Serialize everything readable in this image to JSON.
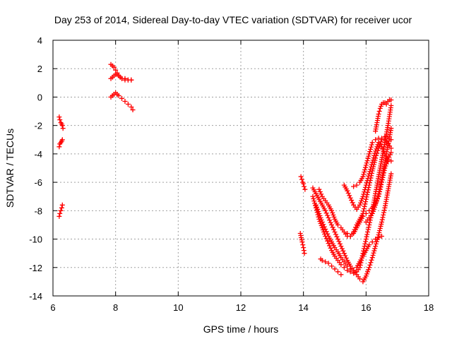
{
  "chart_data": {
    "type": "scatter",
    "title": "Day 253 of 2014, Sidereal Day-to-day VTEC variation (SDTVAR) for receiver ucor",
    "xlabel": "GPS time / hours",
    "ylabel": "SDTVAR / TECUs",
    "xlim": [
      6,
      18
    ],
    "ylim": [
      -14,
      4
    ],
    "x_ticks": [
      "6",
      "8",
      "10",
      "12",
      "14",
      "16",
      "18"
    ],
    "y_ticks": [
      "4",
      "2",
      "0",
      "-2",
      "-4",
      "-6",
      "-8",
      "-10",
      "-12",
      "-14"
    ],
    "grid": true,
    "legend": "none",
    "marker": "+",
    "color": "#ff0000",
    "series": [
      {
        "x": [
          6.2,
          6.22,
          6.25,
          6.28,
          6.3,
          6.32
        ],
        "values": [
          -1.4,
          -1.6,
          -1.8,
          -1.9,
          -2.0,
          -2.2
        ]
      },
      {
        "x": [
          6.2,
          6.22,
          6.25,
          6.28,
          6.3
        ],
        "values": [
          -3.5,
          -3.3,
          -3.2,
          -3.1,
          -3.0
        ]
      },
      {
        "x": [
          6.2,
          6.22,
          6.25,
          6.28,
          6.3
        ],
        "values": [
          -8.4,
          -8.2,
          -8.0,
          -7.8,
          -7.6
        ]
      },
      {
        "x": [
          7.85,
          7.9,
          7.95,
          8.0,
          8.05,
          8.1,
          8.15,
          8.2,
          8.3,
          8.4,
          8.5
        ],
        "values": [
          2.3,
          2.2,
          2.1,
          1.9,
          1.7,
          1.5,
          1.4,
          1.3,
          1.3,
          1.2,
          1.2
        ]
      },
      {
        "x": [
          7.85,
          7.9,
          7.95,
          8.0,
          8.05,
          8.1,
          8.15,
          8.2,
          8.3,
          8.4,
          8.5
        ],
        "values": [
          1.3,
          1.4,
          1.5,
          1.6,
          1.6,
          1.5,
          1.4,
          1.3,
          1.2,
          1.2,
          1.2
        ]
      },
      {
        "x": [
          7.85,
          7.9,
          7.95,
          8.0,
          8.05,
          8.1,
          8.2,
          8.3,
          8.4,
          8.5,
          8.55
        ],
        "values": [
          0.0,
          0.1,
          0.2,
          0.3,
          0.2,
          0.1,
          -0.1,
          -0.3,
          -0.5,
          -0.7,
          -0.9
        ]
      },
      {
        "x": [
          13.92,
          13.95,
          13.98,
          14.0,
          14.02,
          14.05
        ],
        "values": [
          -5.6,
          -5.8,
          -6.0,
          -6.1,
          -6.3,
          -6.5
        ]
      },
      {
        "x": [
          13.9,
          13.93,
          13.96,
          14.0,
          14.03
        ],
        "values": [
          -9.6,
          -9.9,
          -10.2,
          -10.6,
          -11.0
        ]
      },
      {
        "x": [
          14.3,
          14.4,
          14.5,
          14.6,
          14.7,
          14.8,
          14.9,
          15.0,
          15.1,
          15.2,
          15.3,
          15.4,
          15.5,
          15.6,
          15.7,
          15.8,
          15.9,
          16.0,
          16.1,
          16.2,
          16.3,
          16.4,
          16.5,
          16.6,
          16.7,
          16.8
        ],
        "values": [
          -7.0,
          -7.8,
          -8.6,
          -9.2,
          -9.8,
          -10.3,
          -10.8,
          -11.2,
          -11.5,
          -11.8,
          -12.0,
          -12.2,
          -12.3,
          -12.4,
          -12.3,
          -12.0,
          -11.0,
          -10.0,
          -9.0,
          -8.0,
          -6.8,
          -5.6,
          -4.4,
          -3.2,
          -2.0,
          -0.6
        ]
      },
      {
        "x": [
          14.3,
          14.4,
          14.5,
          14.6,
          14.7,
          14.8,
          14.9,
          15.0,
          15.1,
          15.2,
          15.3,
          15.4,
          15.5,
          15.6,
          15.7,
          15.8,
          15.9,
          16.0,
          16.1,
          16.2,
          16.3,
          16.4,
          16.5,
          16.6,
          16.7,
          16.8
        ],
        "values": [
          -6.4,
          -6.8,
          -7.2,
          -7.6,
          -8.0,
          -8.5,
          -9.0,
          -9.5,
          -10.0,
          -10.5,
          -11.0,
          -11.5,
          -11.9,
          -12.2,
          -12.5,
          -12.8,
          -13.0,
          -12.6,
          -12.0,
          -11.3,
          -10.5,
          -9.7,
          -8.8,
          -7.8,
          -6.6,
          -5.4
        ]
      },
      {
        "x": [
          14.4,
          14.5,
          14.6,
          14.7,
          14.8,
          14.9,
          15.0,
          15.1,
          15.2,
          15.3,
          15.4,
          15.5,
          15.6,
          15.7,
          15.8,
          15.9,
          16.0,
          16.1,
          16.2,
          16.3,
          16.4,
          16.5
        ],
        "values": [
          -7.6,
          -8.2,
          -8.8,
          -9.3,
          -9.8,
          -10.2,
          -10.6,
          -10.9,
          -11.3,
          -11.6,
          -11.9,
          -12.1,
          -12.2,
          -12.0,
          -11.6,
          -11.2,
          -10.8,
          -10.4,
          -10.2,
          -10.0,
          -9.9,
          -9.8
        ]
      },
      {
        "x": [
          14.55,
          14.6,
          14.7,
          14.8,
          14.9,
          15.0,
          15.1,
          15.2
        ],
        "values": [
          -11.4,
          -11.5,
          -11.6,
          -11.7,
          -11.9,
          -12.1,
          -12.3,
          -12.5
        ]
      },
      {
        "x": [
          14.5,
          14.6,
          14.7,
          14.8,
          14.9,
          15.0,
          15.1,
          15.2,
          15.3,
          15.4,
          15.5,
          15.6,
          15.7,
          15.8,
          15.9,
          16.0,
          16.1,
          16.2,
          16.3,
          16.4,
          16.5,
          16.6,
          16.7,
          16.8
        ],
        "values": [
          -6.5,
          -7.0,
          -7.3,
          -7.6,
          -8.0,
          -8.6,
          -9.0,
          -9.2,
          -9.5,
          -9.8,
          -9.8,
          -9.6,
          -9.2,
          -8.8,
          -8.4,
          -8.2,
          -8.0,
          -7.8,
          -7.5,
          -7.0,
          -6.0,
          -5.0,
          -4.4,
          -3.9
        ]
      },
      {
        "x": [
          15.3,
          15.4,
          15.5,
          15.6,
          15.7,
          15.8,
          15.9,
          16.0,
          16.1,
          16.2,
          16.3,
          16.4,
          16.5,
          16.6,
          16.7,
          16.8
        ],
        "values": [
          -6.2,
          -6.6,
          -7.1,
          -7.6,
          -7.9,
          -7.6,
          -7.0,
          -6.2,
          -5.4,
          -4.6,
          -3.8,
          -3.2,
          -3.5,
          -4.0,
          -4.5,
          -4.5
        ]
      },
      {
        "x": [
          15.4,
          15.5,
          15.6,
          15.7,
          15.8,
          15.9,
          16.0,
          16.1,
          16.2,
          16.3,
          16.4,
          16.5,
          16.6,
          16.7,
          16.8
        ],
        "values": [
          -9.6,
          -9.8,
          -9.5,
          -9.0,
          -8.6,
          -8.2,
          -7.2,
          -6.2,
          -5.2,
          -4.3,
          -3.6,
          -3.0,
          -2.8,
          -2.8,
          -3.0
        ]
      },
      {
        "x": [
          15.6,
          15.7,
          15.8,
          15.9,
          16.0,
          16.1,
          16.2,
          16.3,
          16.4,
          16.5,
          16.6,
          16.7,
          16.8
        ],
        "values": [
          -6.3,
          -6.2,
          -6.0,
          -5.6,
          -4.8,
          -4.0,
          -3.2,
          -3.0,
          -2.9,
          -2.9,
          -3.0,
          -3.3,
          -3.6
        ]
      },
      {
        "x": [
          16.3,
          16.35,
          16.4,
          16.45,
          16.5,
          16.55,
          16.6,
          16.65,
          16.7,
          16.75,
          16.8
        ],
        "values": [
          -2.4,
          -1.8,
          -1.2,
          -0.8,
          -0.5,
          -0.4,
          -0.4,
          -0.5,
          -0.3,
          -0.2,
          -0.2
        ]
      },
      {
        "x": [
          16.0,
          16.1,
          16.2,
          16.3,
          16.4,
          16.5,
          16.6,
          16.7,
          16.8
        ],
        "values": [
          -8.8,
          -8.5,
          -8.2,
          -7.6,
          -6.8,
          -5.8,
          -4.6,
          -3.4,
          -2.2
        ]
      }
    ]
  }
}
